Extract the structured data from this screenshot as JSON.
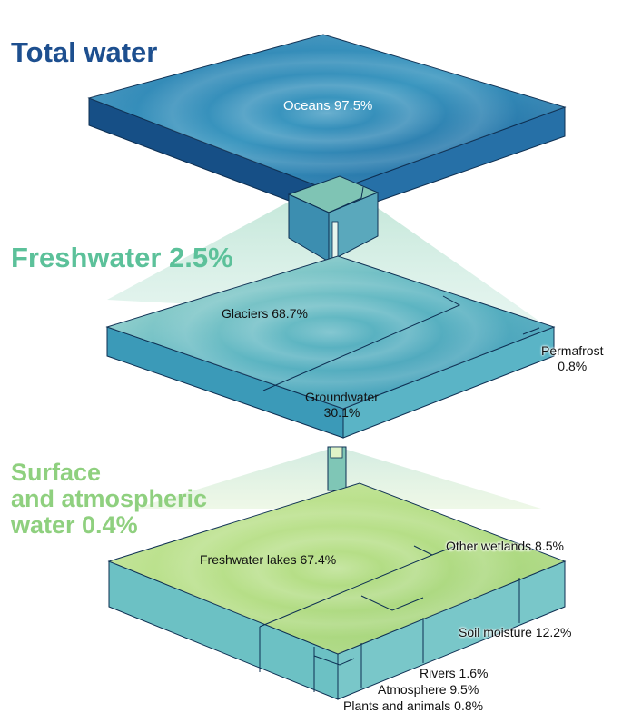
{
  "headings": {
    "total": "Total water",
    "freshwater": "Freshwater 2.5%",
    "surface": [
      "Surface",
      "and atmospheric",
      "water 0.4%"
    ]
  },
  "labels": {
    "oceans": "Oceans 97.5%",
    "glaciers": "Glaciers 68.7%",
    "permafrost": [
      "Permafrost",
      "0.8%"
    ],
    "groundwater": [
      "Groundwater",
      "30.1%"
    ],
    "lakes": "Freshwater lakes 67.4%",
    "other_wetlands": "Other wetlands 8.5%",
    "soil_moisture": "Soil moisture 12.2%",
    "rivers": "Rivers 1.6%",
    "atmosphere": "Atmosphere 9.5%",
    "plants": "Plants and animals 0.8%"
  },
  "colors": {
    "ocean": "#1f6ea8",
    "freshwater": "#3f9fb5",
    "surface": "#a9d77b"
  }
}
